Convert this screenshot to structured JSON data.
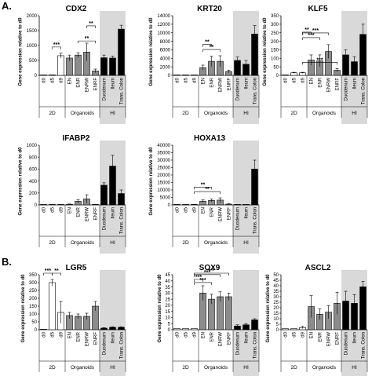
{
  "panel_labels": [
    "A.",
    "B."
  ],
  "y_label": "Gene expression relative to d0",
  "group_labels": [
    "2D",
    "Organoids",
    "HI"
  ],
  "chart_data": [
    {
      "type": "bar",
      "title": "CDX2",
      "ylim": [
        0,
        2000
      ],
      "yticks": [
        0,
        500,
        1000,
        1500,
        2000
      ],
      "categories": [
        "d0",
        "d5",
        "d9",
        "EN",
        "ENR",
        "ENRW",
        "ENRF",
        "Duodenum",
        "Ileum",
        "Trans. Colon"
      ],
      "values": [
        0,
        5,
        660,
        580,
        680,
        780,
        150,
        590,
        580,
        1550
      ],
      "errors": [
        0,
        5,
        80,
        100,
        80,
        300,
        60,
        90,
        60,
        130
      ],
      "significance": [
        {
          "from": "d5",
          "to": "d9",
          "label": "***"
        },
        {
          "from": "ENR",
          "to": "ENRF",
          "label": "**"
        },
        {
          "from": "ENRW",
          "to": "ENRF",
          "label": "**"
        }
      ]
    },
    {
      "type": "bar",
      "title": "KRT20",
      "ylim": [
        0,
        14000
      ],
      "yticks": [
        0,
        2000,
        4000,
        6000,
        8000,
        10000,
        12000,
        14000
      ],
      "categories": [
        "d0",
        "d5",
        "d9",
        "EN",
        "ENR",
        "ENRW",
        "ENRF",
        "Duodenum",
        "Ileum",
        "Trans. Colon"
      ],
      "values": [
        0,
        0,
        0,
        1800,
        3300,
        3300,
        900,
        3500,
        2600,
        9700
      ],
      "errors": [
        0,
        0,
        0,
        600,
        1200,
        1300,
        300,
        800,
        900,
        2000
      ],
      "significance": [
        {
          "from": "EN",
          "to": "ENRW",
          "label": "**"
        },
        {
          "from": "EN",
          "to": "ENR",
          "label": "**"
        }
      ]
    },
    {
      "type": "bar",
      "title": "KLF5",
      "ylim": [
        0,
        350
      ],
      "yticks": [
        0,
        50,
        100,
        150,
        200,
        250,
        300,
        350
      ],
      "categories": [
        "d0",
        "d5",
        "d9",
        "EN",
        "ENR",
        "ENRW",
        "ENRF",
        "Duodenum",
        "Ileum",
        "Trans. Colon"
      ],
      "values": [
        0,
        15,
        15,
        90,
        85,
        140,
        30,
        120,
        80,
        240
      ],
      "errors": [
        0,
        3,
        3,
        30,
        35,
        40,
        10,
        30,
        30,
        60
      ],
      "significance": [
        {
          "from": "d9",
          "to": "ENRF",
          "label": "***"
        },
        {
          "from": "d9",
          "to": "ENRW",
          "label": "***"
        },
        {
          "from": "d9",
          "to": "ENR",
          "label": "***"
        },
        {
          "from": "d9",
          "to": "EN",
          "label": "**"
        }
      ]
    },
    {
      "type": "bar",
      "title": "IFABP2",
      "ylim": [
        0,
        1000
      ],
      "yticks": [
        0,
        200,
        400,
        600,
        800,
        1000
      ],
      "categories": [
        "d0",
        "d5",
        "d9",
        "EN",
        "ENR",
        "ENRW",
        "ENRF",
        "Duodenum",
        "Ileum",
        "Trans. Colon"
      ],
      "values": [
        0,
        0,
        0,
        10,
        60,
        100,
        5,
        330,
        650,
        190
      ],
      "errors": [
        0,
        0,
        0,
        5,
        30,
        70,
        3,
        40,
        180,
        60
      ],
      "significance": []
    },
    {
      "type": "bar",
      "title": "HOXA13",
      "ylim": [
        0,
        40000
      ],
      "yticks": [
        0,
        5000,
        10000,
        15000,
        20000,
        25000,
        30000,
        35000,
        40000
      ],
      "categories": [
        "d0",
        "d5",
        "d9",
        "EN",
        "ENR",
        "ENRW",
        "ENRF",
        "Duodenum",
        "Ileum",
        "Trans. Colon"
      ],
      "values": [
        0,
        0,
        300,
        2500,
        3000,
        3200,
        500,
        100,
        0,
        24000
      ],
      "errors": [
        0,
        0,
        100,
        800,
        1000,
        1500,
        300,
        50,
        0,
        6000
      ],
      "significance": [
        {
          "from": "d9",
          "to": "ENRW",
          "label": "**"
        },
        {
          "from": "d9",
          "to": "ENR",
          "label": "**"
        }
      ]
    },
    {
      "type": "bar",
      "title": "LGR5",
      "ylim": [
        0,
        350
      ],
      "yticks": [
        0,
        50,
        100,
        150,
        200,
        250,
        300,
        350
      ],
      "categories": [
        "d0",
        "d5",
        "d9",
        "EN",
        "ENR",
        "ENRW",
        "ENRF",
        "Duodenum",
        "Ileum",
        "Trans. Colon"
      ],
      "values": [
        0,
        300,
        110,
        90,
        85,
        85,
        150,
        10,
        15,
        15
      ],
      "errors": [
        0,
        20,
        70,
        20,
        15,
        20,
        30,
        3,
        3,
        3
      ],
      "significance": [
        {
          "from": "d0",
          "to": "d5",
          "label": "***"
        },
        {
          "from": "d5",
          "to": "d9",
          "label": "**"
        }
      ]
    },
    {
      "type": "bar",
      "title": "SOX9",
      "ylim": [
        0,
        45
      ],
      "yticks": [
        0,
        5,
        10,
        15,
        20,
        25,
        30,
        35,
        40,
        45
      ],
      "categories": [
        "d0",
        "d5",
        "d9",
        "EN",
        "ENR",
        "ENRW",
        "ENRF",
        "Duodenum",
        "Ileum",
        "Trans. Colon"
      ],
      "values": [
        1,
        1,
        1,
        30,
        25,
        27,
        27,
        3,
        4,
        8
      ],
      "errors": [
        0,
        0,
        0,
        6,
        4,
        4,
        3,
        1,
        1,
        1
      ],
      "significance": [
        {
          "from": "d9",
          "to": "EN",
          "label": "***"
        },
        {
          "from": "d9",
          "to": "ENR",
          "label": "***"
        },
        {
          "from": "d9",
          "to": "ENRW",
          "label": "***"
        },
        {
          "from": "d9",
          "to": "ENRF",
          "label": "***"
        }
      ]
    },
    {
      "type": "bar",
      "title": "ASCL2",
      "ylim": [
        0,
        50
      ],
      "yticks": [
        0,
        5,
        10,
        15,
        20,
        25,
        30,
        35,
        40,
        45,
        50
      ],
      "categories": [
        "d0",
        "d5",
        "d9",
        "EN",
        "ENR",
        "ENRW",
        "ENRF",
        "Duodenum",
        "Ileum",
        "Trans. Colon"
      ],
      "values": [
        1,
        1,
        2,
        21,
        14,
        16,
        24,
        26,
        24,
        39
      ],
      "errors": [
        0,
        0,
        1,
        10,
        5,
        6,
        10,
        9,
        8,
        5
      ],
      "significance": []
    }
  ],
  "colors": {
    "hi_background": "#d9d9d9",
    "axis": "#000000",
    "text": "#000000"
  }
}
